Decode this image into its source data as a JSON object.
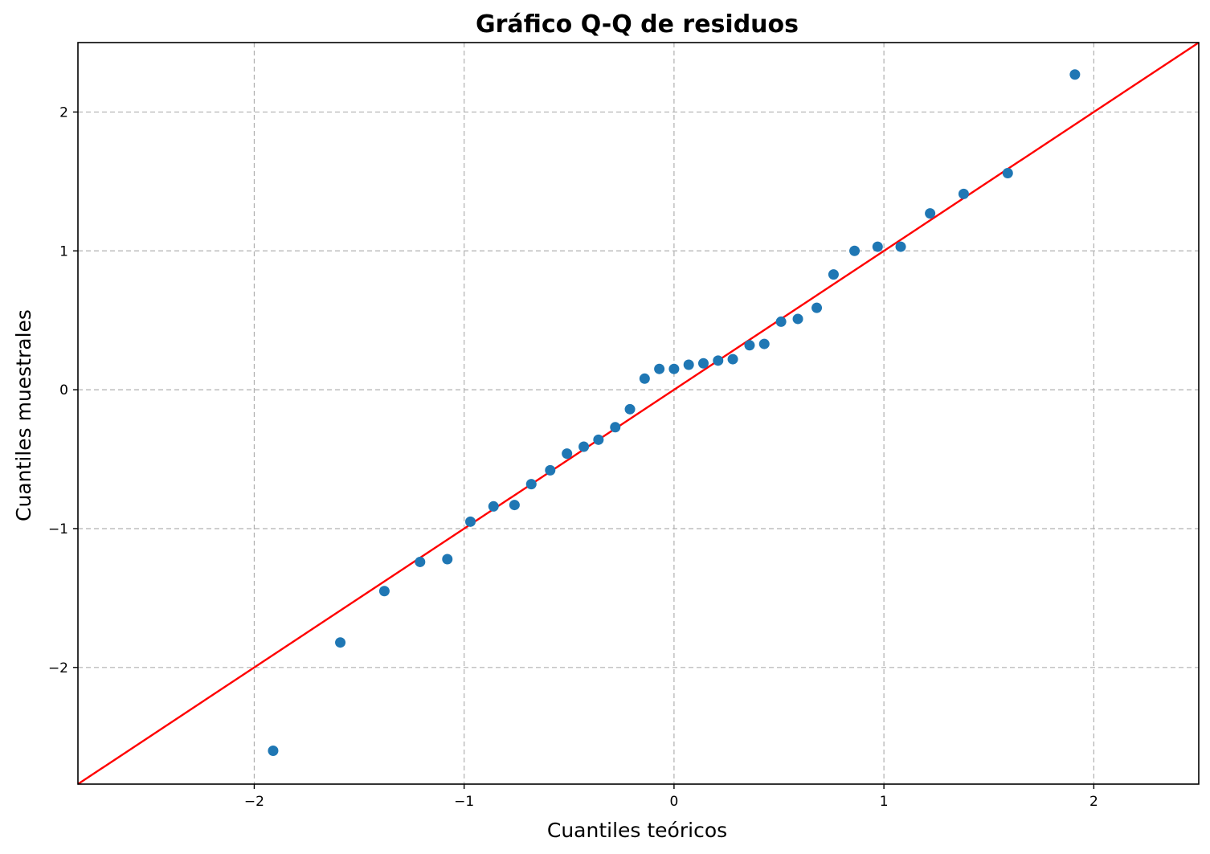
{
  "chart_data": {
    "type": "scatter",
    "title": "Gráfico Q-Q de residuos",
    "xlabel": "Cuantiles teóricos",
    "ylabel": "Cuantiles muestrales",
    "xlim": [
      -2.84,
      2.5
    ],
    "ylim": [
      -2.84,
      2.5
    ],
    "xticks": [
      -2,
      -1,
      0,
      1,
      2
    ],
    "xtick_labels": [
      "−2",
      "−1",
      "0",
      "1",
      "2"
    ],
    "yticks": [
      -2,
      -1,
      0,
      1,
      2
    ],
    "ytick_labels": [
      "−2",
      "−1",
      "0",
      "1",
      "2"
    ],
    "grid": true,
    "point_color": "#1f77b4",
    "line_color": "#ff0000",
    "reference_line": {
      "slope": 1,
      "intercept": 0
    },
    "points": [
      {
        "x": -1.91,
        "y": -2.6
      },
      {
        "x": -1.59,
        "y": -1.82
      },
      {
        "x": -1.38,
        "y": -1.45
      },
      {
        "x": -1.21,
        "y": -1.24
      },
      {
        "x": -1.08,
        "y": -1.22
      },
      {
        "x": -0.97,
        "y": -0.95
      },
      {
        "x": -0.86,
        "y": -0.84
      },
      {
        "x": -0.76,
        "y": -0.83
      },
      {
        "x": -0.68,
        "y": -0.68
      },
      {
        "x": -0.59,
        "y": -0.58
      },
      {
        "x": -0.51,
        "y": -0.46
      },
      {
        "x": -0.43,
        "y": -0.41
      },
      {
        "x": -0.36,
        "y": -0.36
      },
      {
        "x": -0.28,
        "y": -0.27
      },
      {
        "x": -0.21,
        "y": -0.14
      },
      {
        "x": -0.14,
        "y": 0.08
      },
      {
        "x": -0.07,
        "y": 0.15
      },
      {
        "x": 0.0,
        "y": 0.15
      },
      {
        "x": 0.07,
        "y": 0.18
      },
      {
        "x": 0.14,
        "y": 0.19
      },
      {
        "x": 0.21,
        "y": 0.21
      },
      {
        "x": 0.28,
        "y": 0.22
      },
      {
        "x": 0.36,
        "y": 0.32
      },
      {
        "x": 0.43,
        "y": 0.33
      },
      {
        "x": 0.51,
        "y": 0.49
      },
      {
        "x": 0.59,
        "y": 0.51
      },
      {
        "x": 0.68,
        "y": 0.59
      },
      {
        "x": 0.76,
        "y": 0.83
      },
      {
        "x": 0.86,
        "y": 1.0
      },
      {
        "x": 0.97,
        "y": 1.03
      },
      {
        "x": 1.08,
        "y": 1.03
      },
      {
        "x": 1.22,
        "y": 1.27
      },
      {
        "x": 1.38,
        "y": 1.41
      },
      {
        "x": 1.59,
        "y": 1.56
      },
      {
        "x": 1.91,
        "y": 2.27
      }
    ]
  }
}
